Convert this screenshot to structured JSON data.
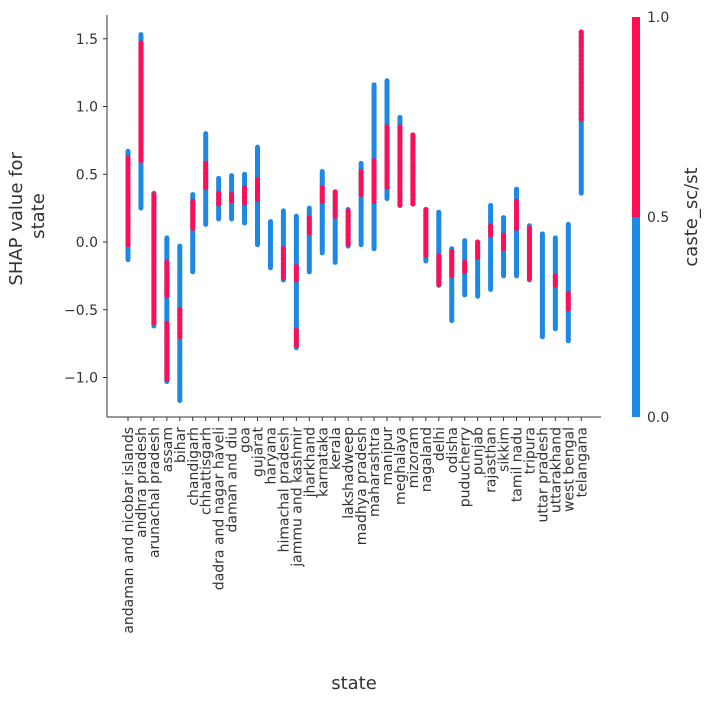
{
  "chart_data": {
    "type": "scatter",
    "title": "",
    "xlabel": "state",
    "ylabel_lines": [
      "SHAP value for",
      "state"
    ],
    "ylim": [
      -1.3,
      1.7
    ],
    "yticks": [
      -1.0,
      -0.5,
      0.0,
      0.5,
      1.0,
      1.5
    ],
    "ytick_labels": [
      "−1.0",
      "−0.5",
      "0.0",
      "0.5",
      "1.0",
      "1.5"
    ],
    "colorbar": {
      "label": "caste_sc/st",
      "ticks": [
        "0.0",
        "0.5",
        "1.0"
      ],
      "low_color": "#1E88E5",
      "high_color": "#FF0D57"
    },
    "colors": {
      "blue": "#1E88E5",
      "red": "#FF0D57",
      "axis": "#333333"
    },
    "series": [
      {
        "name": "andaman and nicobar islands",
        "min": -0.13,
        "max": 0.67,
        "red": [
          [
            -0.02,
            0.62
          ]
        ]
      },
      {
        "name": "andhra pradesh",
        "min": 0.25,
        "max": 1.53,
        "red": [
          [
            0.6,
            1.47
          ]
        ]
      },
      {
        "name": "arunachal pradesh",
        "min": -0.62,
        "max": 0.36,
        "red": [
          [
            -0.6,
            0.35
          ]
        ]
      },
      {
        "name": "assam",
        "min": -1.03,
        "max": 0.03,
        "red": [
          [
            -1.02,
            -0.6
          ],
          [
            -0.4,
            -0.15
          ]
        ]
      },
      {
        "name": "bihar",
        "min": -1.17,
        "max": -0.03,
        "red": [
          [
            -0.7,
            -0.5
          ]
        ]
      },
      {
        "name": "chandigarh",
        "min": -0.22,
        "max": 0.35,
        "red": [
          [
            0.1,
            0.3
          ]
        ]
      },
      {
        "name": "chhattisgarh",
        "min": 0.13,
        "max": 0.8,
        "red": [
          [
            0.4,
            0.58
          ]
        ]
      },
      {
        "name": "dadra and nagar haveli",
        "min": 0.17,
        "max": 0.47,
        "red": [
          [
            0.28,
            0.36
          ]
        ]
      },
      {
        "name": "daman and diu",
        "min": 0.17,
        "max": 0.49,
        "red": [
          [
            0.3,
            0.35
          ]
        ]
      },
      {
        "name": "goa",
        "min": 0.14,
        "max": 0.5,
        "red": [
          [
            0.28,
            0.4
          ]
        ]
      },
      {
        "name": "gujarat",
        "min": -0.02,
        "max": 0.7,
        "red": [
          [
            0.3,
            0.46
          ]
        ]
      },
      {
        "name": "haryana",
        "min": -0.19,
        "max": 0.15,
        "red": []
      },
      {
        "name": "himachal pradesh",
        "min": -0.28,
        "max": 0.23,
        "red": [
          [
            -0.27,
            -0.05
          ]
        ]
      },
      {
        "name": "jammu and kashmir",
        "min": -0.78,
        "max": 0.19,
        "red": [
          [
            -0.77,
            -0.65
          ],
          [
            -0.28,
            -0.18
          ]
        ]
      },
      {
        "name": "jharkhand",
        "min": -0.22,
        "max": 0.25,
        "red": [
          [
            0.06,
            0.18
          ]
        ]
      },
      {
        "name": "karnataka",
        "min": -0.08,
        "max": 0.52,
        "red": [
          [
            0.3,
            0.4
          ]
        ]
      },
      {
        "name": "kerala",
        "min": -0.15,
        "max": 0.37,
        "red": [
          [
            0.18,
            0.37
          ]
        ]
      },
      {
        "name": "lakshadweep",
        "min": -0.03,
        "max": 0.24,
        "red": [
          [
            -0.02,
            0.23
          ]
        ]
      },
      {
        "name": "madhya pradesh",
        "min": -0.02,
        "max": 0.58,
        "red": [
          [
            0.35,
            0.52
          ]
        ]
      },
      {
        "name": "maharashtra",
        "min": -0.05,
        "max": 1.16,
        "red": [
          [
            0.3,
            0.6
          ]
        ]
      },
      {
        "name": "manipur",
        "min": 0.32,
        "max": 1.19,
        "red": [
          [
            0.4,
            0.85
          ]
        ]
      },
      {
        "name": "meghalaya",
        "min": 0.27,
        "max": 0.92,
        "red": [
          [
            0.27,
            0.85
          ]
        ]
      },
      {
        "name": "mizoram",
        "min": 0.28,
        "max": 0.79,
        "red": [
          [
            0.28,
            0.79
          ]
        ]
      },
      {
        "name": "nagaland",
        "min": -0.14,
        "max": 0.24,
        "red": [
          [
            -0.1,
            0.24
          ]
        ]
      },
      {
        "name": "delhi",
        "min": -0.32,
        "max": 0.22,
        "red": [
          [
            -0.32,
            -0.1
          ]
        ]
      },
      {
        "name": "odisha",
        "min": -0.58,
        "max": -0.05,
        "red": [
          [
            -0.25,
            -0.07
          ]
        ]
      },
      {
        "name": "puducherry",
        "min": -0.39,
        "max": 0.01,
        "red": [
          [
            -0.22,
            -0.15
          ]
        ]
      },
      {
        "name": "punjab",
        "min": -0.4,
        "max": 0.0,
        "red": [
          [
            -0.12,
            0.0
          ]
        ]
      },
      {
        "name": "rajasthan",
        "min": -0.35,
        "max": 0.27,
        "red": [
          [
            0.05,
            0.12
          ]
        ]
      },
      {
        "name": "sikkim",
        "min": -0.25,
        "max": 0.18,
        "red": [
          [
            -0.05,
            0.05
          ]
        ]
      },
      {
        "name": "tamil nadu",
        "min": -0.25,
        "max": 0.39,
        "red": [
          [
            0.1,
            0.3
          ]
        ]
      },
      {
        "name": "tripura",
        "min": -0.28,
        "max": 0.12,
        "red": [
          [
            -0.27,
            0.1
          ]
        ]
      },
      {
        "name": "uttar pradesh",
        "min": -0.7,
        "max": 0.06,
        "red": []
      },
      {
        "name": "uttarakhand",
        "min": -0.64,
        "max": 0.03,
        "red": [
          [
            -0.32,
            -0.25
          ]
        ]
      },
      {
        "name": "west bengal",
        "min": -0.73,
        "max": 0.13,
        "red": [
          [
            -0.5,
            -0.38
          ]
        ]
      },
      {
        "name": "telangana",
        "min": 0.36,
        "max": 1.55,
        "red": [
          [
            0.9,
            1.55
          ]
        ]
      }
    ]
  }
}
